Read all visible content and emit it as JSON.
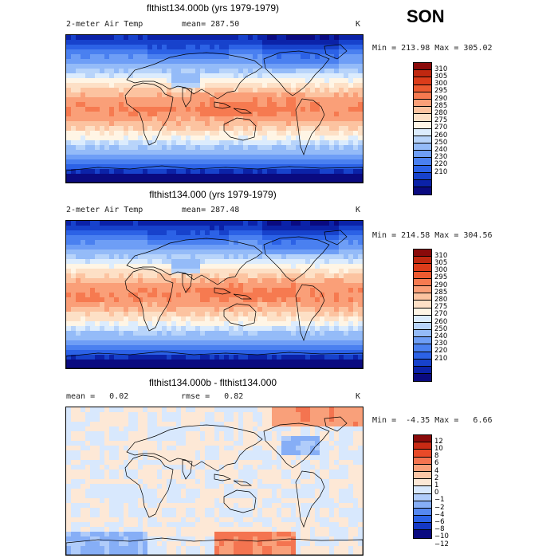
{
  "season": "SON",
  "colors": {
    "temp": [
      "#0a0a80",
      "#0b22a8",
      "#1742cc",
      "#2c62e6",
      "#4a80f0",
      "#6e9ef6",
      "#94bbf8",
      "#b8d4fa",
      "#dcecfd",
      "#fff5e5",
      "#fde0c6",
      "#fcc3a0",
      "#fa9f78",
      "#f67a50",
      "#ec5a30",
      "#dc3c1a",
      "#c02810",
      "#8a0a0a"
    ],
    "diff": [
      "#0a0a80",
      "#1438c6",
      "#2c62e6",
      "#5688f0",
      "#86aef6",
      "#b0ccfa",
      "#d8e8fd",
      "#fde8d6",
      "#fcc6a6",
      "#f9a07a",
      "#f47450",
      "#e84a28",
      "#c82a14",
      "#8a0a0a"
    ]
  },
  "panels": [
    {
      "title": "flthist134.000b (yrs 1979-1979)",
      "left_label": "2-meter Air Temp",
      "center_label": "mean= 287.50",
      "right_label": "K",
      "minmax": "Min = 213.98 Max = 305.02"
    },
    {
      "title": "flthist134.000 (yrs 1979-1979)",
      "left_label": "2-meter Air Temp",
      "center_label": "mean= 287.48",
      "right_label": "K",
      "minmax": "Min = 214.58 Max = 304.56"
    },
    {
      "title": "flthist134.000b - flthist134.000",
      "left_label": "mean =   0.02",
      "center_label": "rmse =   0.82",
      "right_label": "K",
      "minmax": "Min =  -4.35 Max =   6.66"
    }
  ],
  "chart_data": [
    {
      "type": "heatmap",
      "title": "flthist134.000b (yrs 1979-1979)",
      "variable": "2-meter Air Temp",
      "units": "K",
      "mean": 287.5,
      "min": 213.98,
      "max": 305.02,
      "colorbar_levels": [
        310,
        305,
        300,
        295,
        290,
        285,
        280,
        275,
        270,
        260,
        250,
        240,
        230,
        220,
        210
      ]
    },
    {
      "type": "heatmap",
      "title": "flthist134.000 (yrs 1979-1979)",
      "variable": "2-meter Air Temp",
      "units": "K",
      "mean": 287.48,
      "min": 214.58,
      "max": 304.56,
      "colorbar_levels": [
        310,
        305,
        300,
        295,
        290,
        285,
        280,
        275,
        270,
        260,
        250,
        240,
        230,
        220,
        210
      ]
    },
    {
      "type": "heatmap",
      "title": "flthist134.000b - flthist134.000",
      "units": "K",
      "mean": 0.02,
      "rmse": 0.82,
      "min": -4.35,
      "max": 6.66,
      "colorbar_levels": [
        12,
        10,
        8,
        6,
        4,
        2,
        1,
        0,
        -1,
        -2,
        -4,
        -6,
        -8,
        -10,
        -12
      ]
    }
  ]
}
